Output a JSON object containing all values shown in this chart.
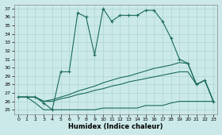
{
  "xlabel": "Humidex (Indice chaleur)",
  "xlim": [
    -0.5,
    23.5
  ],
  "ylim": [
    24.5,
    37.5
  ],
  "xticks": [
    0,
    1,
    2,
    3,
    4,
    5,
    6,
    7,
    8,
    9,
    10,
    11,
    12,
    13,
    14,
    15,
    16,
    17,
    18,
    19,
    20,
    21,
    22,
    23
  ],
  "yticks": [
    25,
    26,
    27,
    28,
    29,
    30,
    31,
    32,
    33,
    34,
    35,
    36,
    37
  ],
  "bg_color": "#cce9e9",
  "line_color": "#1a6b5a",
  "grid_color": "#aad4d4",
  "line1_x": [
    0,
    1,
    2,
    3,
    4,
    5,
    6,
    7,
    8,
    9,
    10,
    11,
    12,
    13,
    14,
    15,
    16,
    17,
    18,
    19,
    20,
    21,
    22,
    23
  ],
  "line1_y": [
    26.5,
    26.5,
    26.5,
    25.8,
    25.0,
    29.5,
    29.5,
    36.5,
    36.0,
    31.5,
    37.0,
    35.5,
    36.2,
    36.2,
    36.2,
    36.8,
    36.8,
    35.5,
    33.5,
    31.0,
    30.5,
    28.0,
    28.5,
    26.0
  ],
  "line2_x": [
    0,
    1,
    2,
    3,
    4,
    5,
    6,
    7,
    8,
    9,
    10,
    11,
    12,
    13,
    14,
    15,
    16,
    17,
    18,
    19,
    20,
    21,
    22,
    23
  ],
  "line2_y": [
    26.5,
    26.5,
    25.8,
    25.0,
    25.0,
    25.0,
    25.0,
    25.0,
    25.0,
    25.0,
    25.2,
    25.2,
    25.2,
    25.2,
    25.2,
    25.5,
    25.5,
    25.5,
    25.8,
    26.0,
    26.0,
    26.0,
    26.0,
    26.0
  ],
  "line3_x": [
    0,
    1,
    2,
    3,
    4,
    5,
    6,
    7,
    8,
    9,
    10,
    11,
    12,
    13,
    14,
    15,
    16,
    17,
    18,
    19,
    20,
    21,
    22,
    23
  ],
  "line3_y": [
    26.5,
    26.5,
    26.5,
    26.0,
    26.2,
    26.5,
    26.8,
    27.2,
    27.5,
    27.8,
    28.2,
    28.5,
    28.8,
    29.0,
    29.3,
    29.6,
    29.9,
    30.1,
    30.3,
    30.6,
    30.5,
    28.0,
    28.5,
    26.0
  ],
  "line4_x": [
    0,
    1,
    2,
    3,
    4,
    5,
    6,
    7,
    8,
    9,
    10,
    11,
    12,
    13,
    14,
    15,
    16,
    17,
    18,
    19,
    20,
    21,
    22,
    23
  ],
  "line4_y": [
    26.5,
    26.5,
    26.5,
    26.0,
    26.0,
    26.3,
    26.5,
    26.8,
    27.0,
    27.3,
    27.5,
    27.8,
    28.0,
    28.3,
    28.5,
    28.7,
    28.9,
    29.1,
    29.3,
    29.5,
    29.5,
    28.0,
    28.5,
    26.0
  ]
}
